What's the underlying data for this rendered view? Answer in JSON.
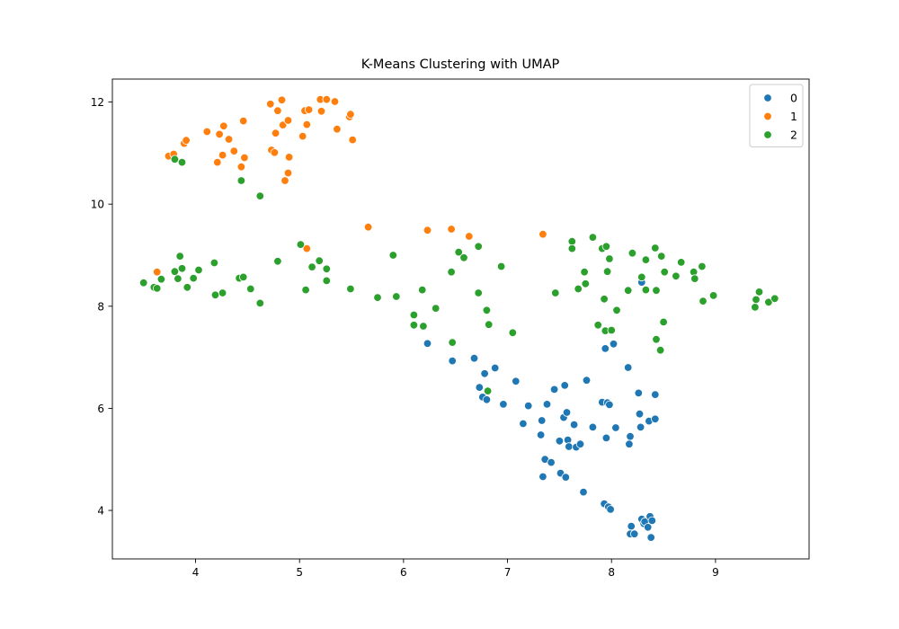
{
  "chart_data": {
    "type": "scatter",
    "title": "K-Means Clustering with UMAP",
    "xlabel": "",
    "ylabel": "",
    "xlim": [
      3.2,
      9.9
    ],
    "ylim": [
      3.05,
      12.45
    ],
    "xticks": [
      4,
      5,
      6,
      7,
      8,
      9
    ],
    "yticks": [
      4,
      6,
      8,
      10,
      12
    ],
    "grid": false,
    "legend_position": "top-right",
    "series": [
      {
        "name": "0",
        "color": "#1f77b4",
        "points": [
          [
            6.23,
            7.27
          ],
          [
            6.47,
            6.93
          ],
          [
            6.68,
            6.98
          ],
          [
            6.73,
            6.41
          ],
          [
            6.76,
            6.22
          ],
          [
            6.78,
            6.68
          ],
          [
            6.8,
            6.17
          ],
          [
            6.88,
            6.79
          ],
          [
            6.96,
            6.08
          ],
          [
            7.08,
            6.53
          ],
          [
            7.15,
            5.7
          ],
          [
            7.2,
            6.05
          ],
          [
            7.32,
            5.48
          ],
          [
            7.33,
            5.76
          ],
          [
            7.34,
            4.66
          ],
          [
            7.36,
            5.0
          ],
          [
            7.38,
            6.08
          ],
          [
            7.42,
            4.94
          ],
          [
            7.45,
            6.37
          ],
          [
            7.5,
            5.36
          ],
          [
            7.51,
            4.73
          ],
          [
            7.54,
            5.82
          ],
          [
            7.55,
            6.45
          ],
          [
            7.56,
            4.65
          ],
          [
            7.57,
            5.92
          ],
          [
            7.58,
            5.38
          ],
          [
            7.59,
            5.25
          ],
          [
            7.64,
            5.68
          ],
          [
            7.66,
            5.24
          ],
          [
            7.7,
            5.3
          ],
          [
            7.73,
            4.36
          ],
          [
            7.76,
            6.55
          ],
          [
            7.82,
            5.63
          ],
          [
            7.91,
            6.12
          ],
          [
            7.93,
            4.13
          ],
          [
            7.94,
            7.17
          ],
          [
            7.95,
            5.42
          ],
          [
            7.96,
            6.11
          ],
          [
            7.97,
            4.07
          ],
          [
            7.98,
            6.07
          ],
          [
            7.99,
            4.02
          ],
          [
            8.02,
            7.26
          ],
          [
            8.04,
            5.62
          ],
          [
            8.16,
            6.8
          ],
          [
            8.17,
            5.3
          ],
          [
            8.18,
            5.45
          ],
          [
            8.18,
            3.54
          ],
          [
            8.19,
            3.69
          ],
          [
            8.22,
            3.54
          ],
          [
            8.26,
            6.3
          ],
          [
            8.27,
            5.89
          ],
          [
            8.28,
            5.63
          ],
          [
            8.29,
            3.83
          ],
          [
            8.31,
            3.74
          ],
          [
            8.32,
            3.78
          ],
          [
            8.35,
            3.67
          ],
          [
            8.36,
            5.75
          ],
          [
            8.37,
            3.88
          ],
          [
            8.38,
            3.47
          ],
          [
            8.39,
            3.8
          ],
          [
            8.42,
            6.27
          ],
          [
            8.42,
            5.79
          ],
          [
            8.29,
            8.47
          ]
        ]
      },
      {
        "name": "1",
        "color": "#ff7f0e",
        "points": [
          [
            3.63,
            8.67
          ],
          [
            3.74,
            10.94
          ],
          [
            3.79,
            10.98
          ],
          [
            3.89,
            11.19
          ],
          [
            3.91,
            11.25
          ],
          [
            4.11,
            11.42
          ],
          [
            4.21,
            10.82
          ],
          [
            4.23,
            11.37
          ],
          [
            4.26,
            10.96
          ],
          [
            4.27,
            11.53
          ],
          [
            4.32,
            11.27
          ],
          [
            4.37,
            11.04
          ],
          [
            4.44,
            10.73
          ],
          [
            4.46,
            11.63
          ],
          [
            4.47,
            10.91
          ],
          [
            4.72,
            11.96
          ],
          [
            4.73,
            11.06
          ],
          [
            4.76,
            11.01
          ],
          [
            4.77,
            11.39
          ],
          [
            4.79,
            11.83
          ],
          [
            4.83,
            12.04
          ],
          [
            4.84,
            11.55
          ],
          [
            4.86,
            10.46
          ],
          [
            4.89,
            11.64
          ],
          [
            4.89,
            10.61
          ],
          [
            4.9,
            10.92
          ],
          [
            5.03,
            11.33
          ],
          [
            5.05,
            11.83
          ],
          [
            5.07,
            11.56
          ],
          [
            5.09,
            11.85
          ],
          [
            5.07,
            9.13
          ],
          [
            5.2,
            12.05
          ],
          [
            5.21,
            11.82
          ],
          [
            5.26,
            12.05
          ],
          [
            5.34,
            12.01
          ],
          [
            5.36,
            11.47
          ],
          [
            5.48,
            11.71
          ],
          [
            5.49,
            11.76
          ],
          [
            5.51,
            11.26
          ],
          [
            5.66,
            9.55
          ],
          [
            6.23,
            9.49
          ],
          [
            6.46,
            9.51
          ],
          [
            6.63,
            9.37
          ],
          [
            7.34,
            9.41
          ]
        ]
      },
      {
        "name": "2",
        "color": "#2ca02c",
        "points": [
          [
            3.5,
            8.46
          ],
          [
            3.6,
            8.37
          ],
          [
            3.63,
            8.35
          ],
          [
            3.67,
            8.53
          ],
          [
            3.8,
            10.88
          ],
          [
            3.8,
            8.68
          ],
          [
            3.83,
            8.54
          ],
          [
            3.85,
            8.98
          ],
          [
            3.87,
            10.82
          ],
          [
            3.87,
            8.74
          ],
          [
            3.92,
            8.37
          ],
          [
            3.98,
            8.55
          ],
          [
            4.03,
            8.71
          ],
          [
            4.18,
            8.85
          ],
          [
            4.19,
            8.22
          ],
          [
            4.26,
            8.26
          ],
          [
            4.42,
            8.55
          ],
          [
            4.44,
            10.46
          ],
          [
            4.46,
            8.57
          ],
          [
            4.53,
            8.34
          ],
          [
            4.62,
            10.16
          ],
          [
            4.62,
            8.06
          ],
          [
            4.79,
            8.88
          ],
          [
            5.01,
            9.21
          ],
          [
            5.06,
            8.32
          ],
          [
            5.12,
            8.77
          ],
          [
            5.19,
            8.89
          ],
          [
            5.26,
            8.73
          ],
          [
            5.26,
            8.5
          ],
          [
            5.49,
            8.34
          ],
          [
            5.75,
            8.17
          ],
          [
            5.9,
            9.0
          ],
          [
            5.93,
            8.19
          ],
          [
            6.1,
            7.83
          ],
          [
            6.1,
            7.63
          ],
          [
            6.18,
            8.32
          ],
          [
            6.19,
            7.61
          ],
          [
            6.31,
            7.96
          ],
          [
            6.46,
            8.67
          ],
          [
            6.47,
            7.29
          ],
          [
            6.53,
            9.06
          ],
          [
            6.58,
            8.95
          ],
          [
            6.72,
            9.17
          ],
          [
            6.72,
            8.26
          ],
          [
            6.8,
            7.92
          ],
          [
            6.82,
            7.64
          ],
          [
            6.81,
            6.34
          ],
          [
            6.94,
            8.78
          ],
          [
            7.05,
            7.48
          ],
          [
            7.46,
            8.26
          ],
          [
            7.62,
            9.27
          ],
          [
            7.62,
            9.13
          ],
          [
            7.68,
            8.34
          ],
          [
            7.74,
            8.67
          ],
          [
            7.75,
            8.44
          ],
          [
            7.82,
            9.35
          ],
          [
            7.87,
            7.63
          ],
          [
            7.91,
            9.13
          ],
          [
            7.93,
            8.14
          ],
          [
            7.94,
            7.52
          ],
          [
            7.95,
            9.17
          ],
          [
            7.96,
            8.68
          ],
          [
            7.98,
            8.93
          ],
          [
            8.0,
            7.53
          ],
          [
            8.05,
            7.92
          ],
          [
            8.16,
            8.31
          ],
          [
            8.2,
            9.04
          ],
          [
            8.29,
            8.57
          ],
          [
            8.33,
            8.91
          ],
          [
            8.33,
            8.32
          ],
          [
            8.42,
            9.14
          ],
          [
            8.43,
            8.31
          ],
          [
            8.43,
            7.35
          ],
          [
            8.47,
            7.14
          ],
          [
            8.48,
            8.98
          ],
          [
            8.5,
            7.69
          ],
          [
            8.51,
            8.67
          ],
          [
            8.62,
            8.59
          ],
          [
            8.67,
            8.86
          ],
          [
            8.79,
            8.67
          ],
          [
            8.8,
            8.54
          ],
          [
            8.87,
            8.78
          ],
          [
            8.88,
            8.1
          ],
          [
            8.98,
            8.21
          ],
          [
            9.38,
            7.98
          ],
          [
            9.39,
            8.13
          ],
          [
            9.42,
            8.28
          ],
          [
            9.51,
            8.08
          ],
          [
            9.57,
            8.15
          ]
        ]
      }
    ]
  }
}
